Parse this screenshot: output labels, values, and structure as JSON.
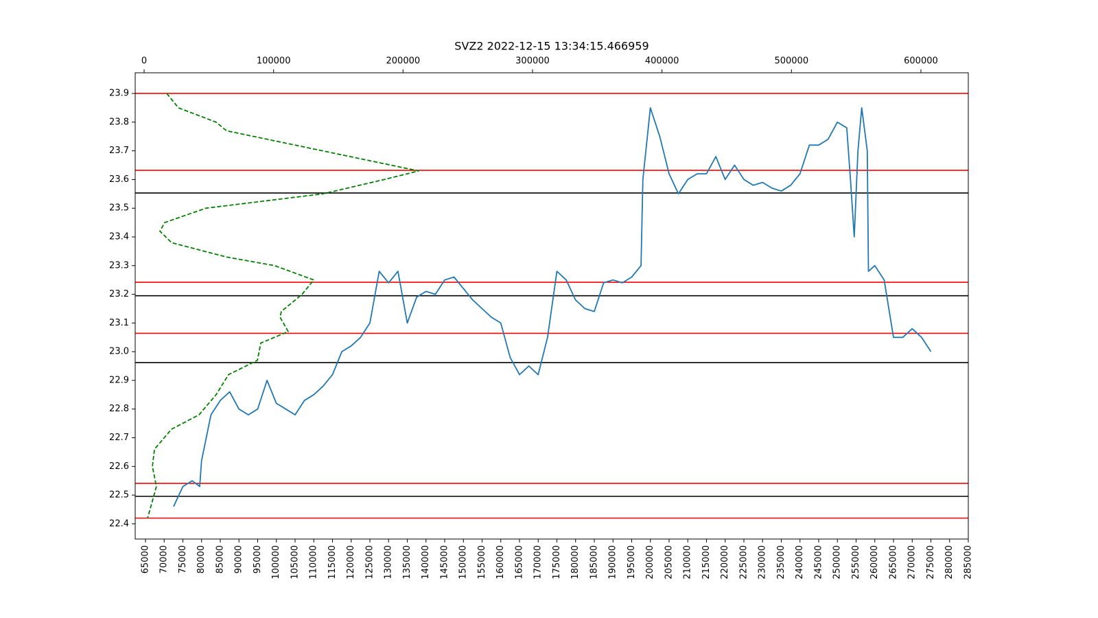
{
  "chart_data": {
    "type": "line",
    "title": "SVZ2 2022-12-15 13:34:15.466959",
    "xlim": [
      62250,
      285000
    ],
    "xticks": [
      65000,
      70000,
      75000,
      80000,
      85000,
      90000,
      95000,
      100000,
      105000,
      110000,
      115000,
      120000,
      125000,
      130000,
      135000,
      140000,
      145000,
      150000,
      155000,
      160000,
      165000,
      170000,
      175000,
      180000,
      185000,
      190000,
      195000,
      200000,
      205000,
      210000,
      215000,
      220000,
      225000,
      230000,
      235000,
      240000,
      245000,
      250000,
      255000,
      260000,
      265000,
      270000,
      275000,
      280000,
      285000
    ],
    "x2lim": [
      -6900,
      636600
    ],
    "x2ticks": [
      0,
      100000,
      200000,
      300000,
      400000,
      500000,
      600000
    ],
    "ylim": [
      22.347,
      23.972
    ],
    "yticks": [
      22.4,
      22.5,
      22.6,
      22.7,
      22.8,
      22.9,
      {
        "value": 23,
        "label": "23.0"
      },
      23.1,
      23.2,
      23.3,
      23.4,
      23.5,
      23.6,
      23.7,
      23.8,
      23.9
    ],
    "hlines": [
      {
        "y": 23.9,
        "color": "#ff0000"
      },
      {
        "y": 23.632,
        "color": "#ff0000"
      },
      {
        "y": 23.242,
        "color": "#ff0000"
      },
      {
        "y": 23.064,
        "color": "#ff0000"
      },
      {
        "y": 22.541,
        "color": "#ff0000"
      },
      {
        "y": 22.42,
        "color": "#ff0000"
      },
      {
        "y": 23.553,
        "color": "#000000"
      },
      {
        "y": 23.195,
        "color": "#000000"
      },
      {
        "y": 22.962,
        "color": "#000000"
      },
      {
        "y": 22.496,
        "color": "#000000"
      }
    ],
    "series": [
      {
        "color": "#1f77b4",
        "x": [
          72500,
          75000,
          77500,
          79500,
          80000,
          82500,
          85000,
          87500,
          90000,
          92500,
          95000,
          97500,
          100000,
          102500,
          105000,
          107500,
          110000,
          112500,
          115000,
          117500,
          120000,
          122500,
          125000,
          127500,
          130000,
          132500,
          135000,
          137500,
          140000,
          142500,
          145000,
          147500,
          150000,
          152500,
          155000,
          157500,
          160000,
          162500,
          165000,
          167500,
          170000,
          172500,
          175000,
          177500,
          180000,
          182500,
          185000,
          187500,
          190000,
          192500,
          195000,
          197500,
          198000,
          200000,
          202500,
          205000,
          207500,
          210000,
          212500,
          215000,
          217500,
          220000,
          222500,
          225000,
          227500,
          230000,
          232500,
          235000,
          237500,
          240000,
          242500,
          245000,
          247500,
          250000,
          252500,
          253500,
          254500,
          255500,
          256500,
          257500,
          258000,
          258300,
          260000,
          262500,
          265000,
          267500,
          270000,
          272500,
          275000
        ],
        "values": [
          22.46,
          22.53,
          22.55,
          22.53,
          22.62,
          22.78,
          22.83,
          22.86,
          22.8,
          22.78,
          22.8,
          22.9,
          22.82,
          22.8,
          22.78,
          22.83,
          22.85,
          22.88,
          22.92,
          23.0,
          23.02,
          23.05,
          23.1,
          23.28,
          23.24,
          23.28,
          23.1,
          23.19,
          23.21,
          23.2,
          23.25,
          23.26,
          23.22,
          23.18,
          23.15,
          23.12,
          23.1,
          22.98,
          22.92,
          22.95,
          22.92,
          23.05,
          23.28,
          23.25,
          23.18,
          23.15,
          23.14,
          23.24,
          23.25,
          23.24,
          23.26,
          23.3,
          23.6,
          23.85,
          23.75,
          23.62,
          23.55,
          23.6,
          23.62,
          23.62,
          23.68,
          23.6,
          23.65,
          23.6,
          23.58,
          23.59,
          23.57,
          23.56,
          23.58,
          23.62,
          23.72,
          23.72,
          23.74,
          23.8,
          23.78,
          23.6,
          23.4,
          23.7,
          23.85,
          23.75,
          23.7,
          23.28,
          23.3,
          23.25,
          23.05,
          23.05,
          23.08,
          23.05,
          23.0
        ]
      },
      {
        "color": "#008000",
        "axis": "x2",
        "dashed": true,
        "x": [
          17500,
          26500,
          55600,
          63600,
          116600,
          212000,
          185500,
          138000,
          47700,
          15900,
          12200,
          21200,
          63600,
          100700,
          131000,
          122000,
          106000,
          105000,
          111300,
          90100,
          87500,
          65200,
          55600,
          42400,
          21200,
          8000,
          6400,
          9500,
          6400,
          2700
        ],
        "values": [
          23.9,
          23.85,
          23.8,
          23.77,
          23.72,
          23.63,
          23.6,
          23.55,
          23.5,
          23.45,
          23.42,
          23.38,
          23.33,
          23.3,
          23.25,
          23.2,
          23.14,
          23.12,
          23.07,
          23.03,
          22.97,
          22.92,
          22.85,
          22.78,
          22.73,
          22.66,
          22.6,
          22.53,
          22.48,
          22.42
        ]
      }
    ]
  }
}
